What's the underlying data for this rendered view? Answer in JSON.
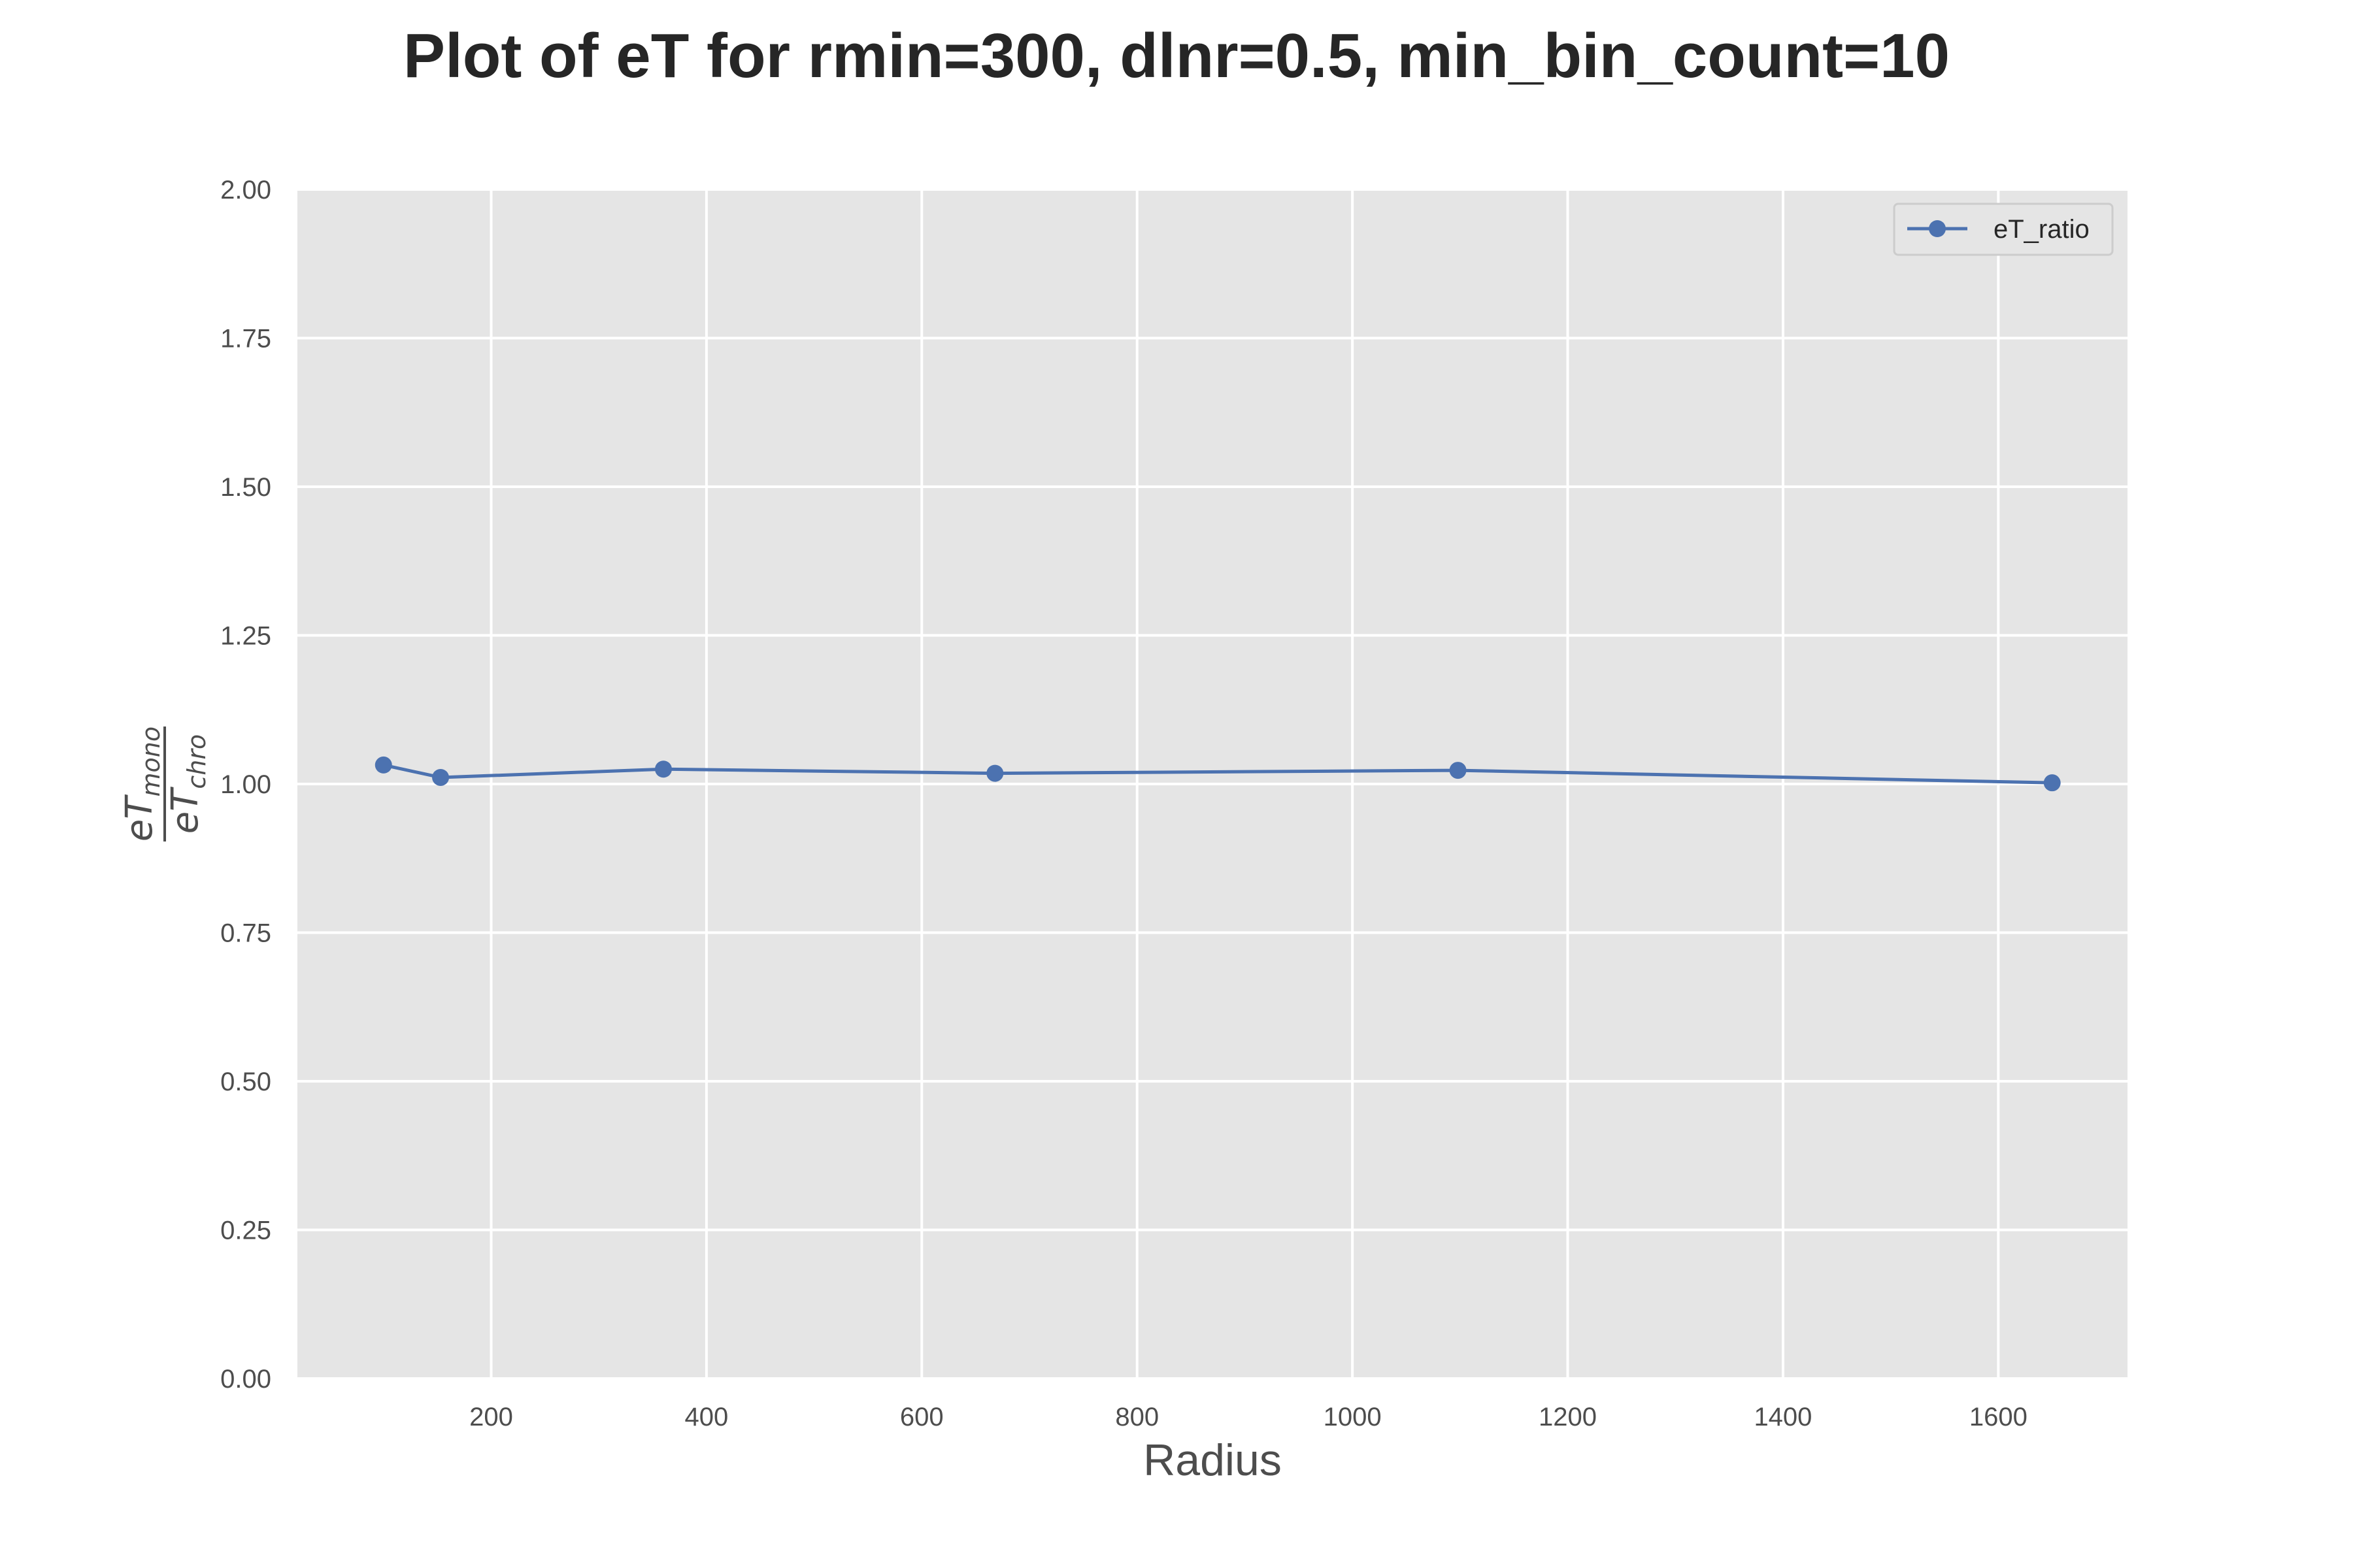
{
  "chart_data": {
    "type": "line",
    "title": "Plot of eT for rmin=300, dlnr=0.5, min_bin_count=10",
    "xlabel": "Radius",
    "ylabel": {
      "numerator": "eT",
      "numerator_sub": "mono",
      "denominator": "eT",
      "denominator_sub": "chro"
    },
    "xlim": [
      20,
      1720
    ],
    "ylim": [
      0,
      2
    ],
    "xticks": [
      200,
      400,
      600,
      800,
      1000,
      1200,
      1400,
      1600
    ],
    "xtick_labels": [
      "200",
      "400",
      "600",
      "800",
      "1000",
      "1200",
      "1400",
      "1600"
    ],
    "yticks": [
      0,
      0.25,
      0.5,
      0.75,
      1.0,
      1.25,
      1.5,
      1.75,
      2.0
    ],
    "ytick_labels": [
      "0.00",
      "0.25",
      "0.50",
      "0.75",
      "1.00",
      "1.25",
      "1.50",
      "1.75",
      "2.00"
    ],
    "grid": true,
    "legend_position": "top-right",
    "colors": {
      "background": "#e5e5e5",
      "grid": "#ffffff",
      "series": "#4c72b0"
    },
    "series": [
      {
        "name": "eT_ratio",
        "x": [
          100,
          153,
          360,
          668,
          1098,
          1650
        ],
        "y": [
          1.032,
          1.011,
          1.025,
          1.018,
          1.023,
          1.002
        ]
      }
    ]
  }
}
